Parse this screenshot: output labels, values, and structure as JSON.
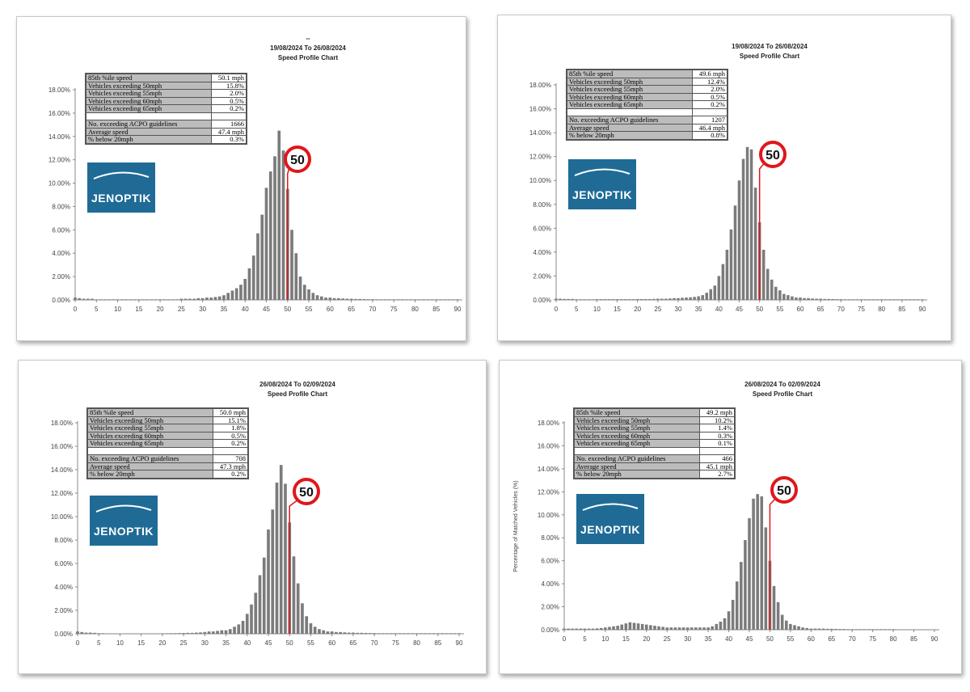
{
  "chart_data": [
    {
      "type": "bar",
      "title_line0": "--",
      "title": "19/08/2024 To 26/08/2024",
      "subtitle": "Speed Profile Chart",
      "ylabel": "",
      "xlim": [
        0,
        90
      ],
      "ylim": [
        0,
        18
      ],
      "x_tick_step": 5,
      "y_tick_step": 2,
      "speed_limit": "50",
      "x": "0..90 mph, 1 mph bins",
      "values": [
        0.2,
        0.15,
        0.1,
        0.1,
        0.1,
        0.05,
        0.05,
        0.05,
        0.05,
        0.05,
        0.05,
        0.05,
        0.05,
        0.05,
        0.05,
        0.05,
        0.05,
        0.05,
        0.05,
        0.05,
        0.05,
        0.05,
        0.05,
        0.05,
        0.05,
        0.1,
        0.1,
        0.1,
        0.1,
        0.15,
        0.15,
        0.2,
        0.2,
        0.25,
        0.3,
        0.4,
        0.6,
        0.8,
        1.0,
        1.3,
        1.8,
        2.7,
        3.8,
        5.7,
        7.3,
        9.6,
        11.0,
        12.3,
        14.5,
        12.8,
        9.5,
        6.0,
        4.0,
        2.0,
        1.3,
        0.9,
        0.6,
        0.4,
        0.3,
        0.2,
        0.2,
        0.15,
        0.15,
        0.12,
        0.1,
        0.1,
        0.08,
        0.08,
        0.07,
        0.06,
        0.06,
        0.05,
        0.05,
        0.05,
        0.05,
        0.05,
        0.05,
        0.05,
        0.05,
        0.05,
        0.05,
        0.05,
        0.05,
        0.05,
        0.05,
        0.05,
        0.05,
        0.05,
        0.05,
        0.05,
        0.05
      ],
      "stats": [
        {
          "label": "85th %ile speed",
          "value": "50.1 mph"
        },
        {
          "label": "Vehicles exceeding 50mph",
          "value": "15.8%"
        },
        {
          "label": "Vehicles exceeding 55mph",
          "value": "2.0%"
        },
        {
          "label": "Vehicles exceeding 60mph",
          "value": "0.5%"
        },
        {
          "label": "Vehicles exceeding 65mph",
          "value": "0.2%"
        },
        {
          "label": "",
          "value": ""
        },
        {
          "label": "No. exceeding ACPO guidelines",
          "value": "1666"
        },
        {
          "label": "Average speed",
          "value": "47.4 mph"
        },
        {
          "label": "% below 20mph",
          "value": "0.3%"
        }
      ],
      "logo": "JENOPTIK"
    },
    {
      "type": "bar",
      "title_line0": "",
      "title": "19/08/2024 To 26/08/2024",
      "subtitle": "Speed Profile Chart",
      "ylabel": "",
      "xlim": [
        0,
        90
      ],
      "ylim": [
        0,
        18
      ],
      "x_tick_step": 5,
      "y_tick_step": 2,
      "speed_limit": "50",
      "x": "0..90 mph, 1 mph bins",
      "values": [
        0.1,
        0.1,
        0.08,
        0.08,
        0.08,
        0.05,
        0.05,
        0.05,
        0.05,
        0.05,
        0.06,
        0.06,
        0.06,
        0.06,
        0.06,
        0.06,
        0.06,
        0.06,
        0.06,
        0.06,
        0.07,
        0.07,
        0.07,
        0.07,
        0.08,
        0.1,
        0.1,
        0.1,
        0.12,
        0.15,
        0.15,
        0.18,
        0.2,
        0.22,
        0.25,
        0.3,
        0.4,
        0.6,
        0.9,
        1.2,
        2.0,
        3.0,
        4.2,
        5.9,
        7.9,
        10.0,
        11.8,
        12.8,
        12.6,
        9.4,
        6.5,
        4.2,
        2.6,
        1.7,
        1.1,
        0.8,
        0.5,
        0.4,
        0.3,
        0.2,
        0.2,
        0.15,
        0.15,
        0.12,
        0.1,
        0.1,
        0.08,
        0.08,
        0.07,
        0.06,
        0.06,
        0.05,
        0.05,
        0.05,
        0.05,
        0.05,
        0.05,
        0.05,
        0.05,
        0.05,
        0.05,
        0.05,
        0.05,
        0.05,
        0.05,
        0.05,
        0.05,
        0.05,
        0.05,
        0.05,
        0.05
      ],
      "stats": [
        {
          "label": "85th %ile speed",
          "value": "49.6 mph"
        },
        {
          "label": "Vehicles exceeding 50mph",
          "value": "12.4%"
        },
        {
          "label": "Vehicles exceeding 55mph",
          "value": "2.0%"
        },
        {
          "label": "Vehicles exceeding 60mph",
          "value": "0.5%"
        },
        {
          "label": "Vehicles exceeding 65mph",
          "value": "0.2%"
        },
        {
          "label": "",
          "value": ""
        },
        {
          "label": "No. exceeding ACPO guidelines",
          "value": "1207"
        },
        {
          "label": "Average speed",
          "value": "46.4 mph"
        },
        {
          "label": "% below 20mph",
          "value": "0.8%"
        }
      ],
      "logo": "JENOPTIK"
    },
    {
      "type": "bar",
      "title_line0": "",
      "title": "26/08/2024 To 02/09/2024",
      "subtitle": "Speed Profile Chart",
      "ylabel": "",
      "xlim": [
        0,
        90
      ],
      "ylim": [
        0,
        18
      ],
      "x_tick_step": 5,
      "y_tick_step": 2,
      "speed_limit": "50",
      "x": "0..90 mph, 1 mph bins",
      "values": [
        0.2,
        0.15,
        0.1,
        0.1,
        0.08,
        0.05,
        0.05,
        0.03,
        0.03,
        0.03,
        0.03,
        0.03,
        0.03,
        0.03,
        0.03,
        0.03,
        0.03,
        0.03,
        0.03,
        0.03,
        0.04,
        0.04,
        0.05,
        0.05,
        0.06,
        0.07,
        0.08,
        0.08,
        0.1,
        0.12,
        0.15,
        0.2,
        0.2,
        0.25,
        0.3,
        0.3,
        0.4,
        0.6,
        0.8,
        1.1,
        1.7,
        2.5,
        3.5,
        5.0,
        6.5,
        8.9,
        10.6,
        12.9,
        14.4,
        12.8,
        9.5,
        6.6,
        4.3,
        2.6,
        1.5,
        0.9,
        0.6,
        0.4,
        0.3,
        0.2,
        0.2,
        0.15,
        0.15,
        0.12,
        0.1,
        0.1,
        0.08,
        0.08,
        0.07,
        0.06,
        0.06,
        0.05,
        0.05,
        0.05,
        0.05,
        0.05,
        0.05,
        0.05,
        0.05,
        0.05,
        0.05,
        0.05,
        0.05,
        0.05,
        0.05,
        0.05,
        0.05,
        0.05,
        0.05,
        0.05,
        0.05
      ],
      "stats": [
        {
          "label": "85th %ile speed",
          "value": "50.0 mph"
        },
        {
          "label": "Vehicles exceeding 50mph",
          "value": "15.1%"
        },
        {
          "label": "Vehicles exceeding 55mph",
          "value": "1.8%"
        },
        {
          "label": "Vehicles exceeding 60mph",
          "value": "0.5%"
        },
        {
          "label": "Vehicles exceeding 65mph",
          "value": "0.2%"
        },
        {
          "label": "",
          "value": ""
        },
        {
          "label": "No. exceeding ACPO guidelines",
          "value": "708"
        },
        {
          "label": "Average speed",
          "value": "47.3 mph"
        },
        {
          "label": "% below 20mph",
          "value": "0.2%"
        }
      ],
      "logo": "JENOPTIK"
    },
    {
      "type": "bar",
      "title_line0": "",
      "title": "26/08/2024 To 02/09/2024",
      "subtitle": "Speed Profile Chart",
      "ylabel": "Percentage of Matched Vehicles (%)",
      "xlim": [
        0,
        90
      ],
      "ylim": [
        0,
        18
      ],
      "x_tick_step": 5,
      "y_tick_step": 2,
      "speed_limit": "50",
      "x": "0..90 mph, 1 mph bins",
      "values": [
        0.1,
        0.1,
        0.1,
        0.1,
        0.1,
        0.1,
        0.1,
        0.1,
        0.12,
        0.15,
        0.2,
        0.25,
        0.3,
        0.35,
        0.45,
        0.55,
        0.65,
        0.6,
        0.55,
        0.5,
        0.45,
        0.4,
        0.35,
        0.3,
        0.25,
        0.2,
        0.2,
        0.2,
        0.2,
        0.2,
        0.2,
        0.2,
        0.2,
        0.2,
        0.2,
        0.2,
        0.3,
        0.5,
        0.7,
        1.0,
        1.6,
        2.6,
        4.2,
        5.9,
        7.8,
        9.7,
        11.4,
        11.8,
        11.6,
        8.9,
        6.0,
        3.8,
        2.4,
        1.3,
        0.8,
        0.5,
        0.4,
        0.3,
        0.2,
        0.15,
        0.1,
        0.1,
        0.1,
        0.1,
        0.08,
        0.08,
        0.07,
        0.06,
        0.06,
        0.05,
        0.05,
        0.05,
        0.05,
        0.05,
        0.05,
        0.05,
        0.05,
        0.05,
        0.05,
        0.05,
        0.05,
        0.03,
        0.03,
        0.03,
        0.03,
        0.03,
        0.03,
        0.03,
        0.03,
        0.03,
        0.03
      ],
      "stats": [
        {
          "label": "85th %ile speed",
          "value": "49.2 mph"
        },
        {
          "label": "Vehicles exceeding 50mph",
          "value": "10.2%"
        },
        {
          "label": "Vehicles exceeding 55mph",
          "value": "1.4%"
        },
        {
          "label": "Vehicles exceeding 60mph",
          "value": "0.3%"
        },
        {
          "label": "Vehicles exceeding 65mph",
          "value": "0.1%"
        },
        {
          "label": "",
          "value": ""
        },
        {
          "label": "No. exceeding ACPO guidelines",
          "value": "466"
        },
        {
          "label": "Average speed",
          "value": "45.1 mph"
        },
        {
          "label": "% below 20mph",
          "value": "2.7%"
        }
      ],
      "logo": "JENOPTIK"
    }
  ]
}
